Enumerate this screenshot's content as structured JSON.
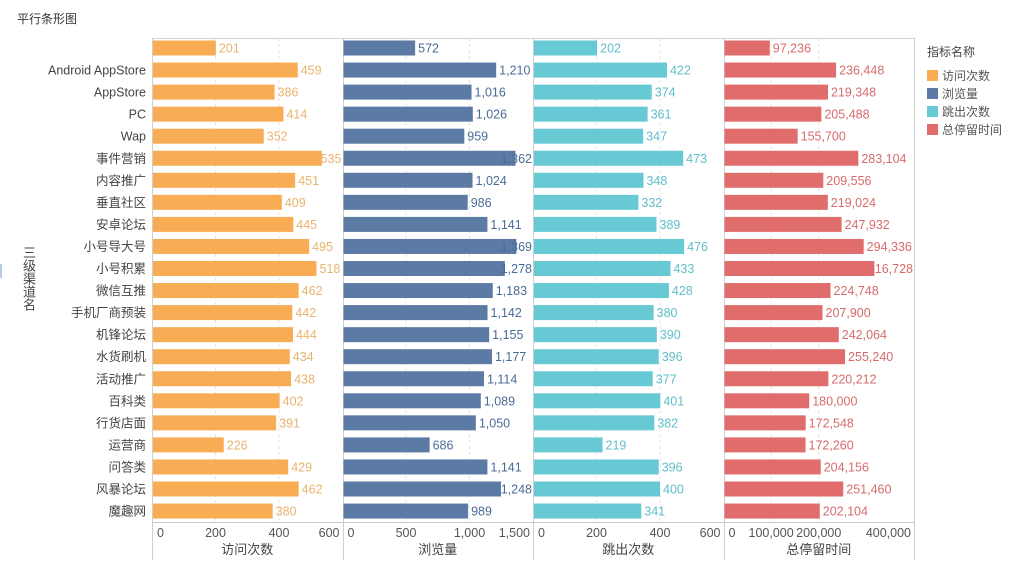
{
  "title": "平行条形图",
  "side_handle": "",
  "chart_data": {
    "type": "bar",
    "orientation": "horizontal",
    "layout": "parallel-panels",
    "title": "平行条形图",
    "ylabel": "三级渠道名",
    "categories": [
      "",
      "Android AppStore",
      "AppStore",
      "PC",
      "Wap",
      "事件营销",
      "内容推广",
      "垂直社区",
      "安卓论坛",
      "小号导大号",
      "小号积累",
      "微信互推",
      "手机厂商预装",
      "机锋论坛",
      "水货刷机",
      "活动推广",
      "百科类",
      "行货店面",
      "运营商",
      "问答类",
      "风暴论坛",
      "魔趣网"
    ],
    "series": [
      {
        "name": "访问次数",
        "xlabel": "访问次数",
        "color": "#f8ad55",
        "label_color": "#e9b36f",
        "xlim": [
          0,
          600
        ],
        "ticks": [
          0,
          200,
          400,
          600
        ],
        "tick_labels": [
          "0",
          "200",
          "400",
          "600"
        ],
        "values": [
          201,
          459,
          386,
          414,
          352,
          535,
          451,
          409,
          445,
          495,
          518,
          462,
          442,
          444,
          434,
          438,
          402,
          391,
          226,
          429,
          462,
          380
        ]
      },
      {
        "name": "浏览量",
        "xlabel": "浏览量",
        "color": "#5b7aa4",
        "label_color": "#4b6b97",
        "xlim": [
          0,
          1500
        ],
        "ticks": [
          0,
          500,
          1000,
          1500
        ],
        "tick_labels": [
          "0",
          "500",
          "1,000",
          "1,500"
        ],
        "values": [
          572,
          1210,
          1016,
          1026,
          959,
          1362,
          1024,
          986,
          1141,
          1369,
          1278,
          1183,
          1142,
          1155,
          1177,
          1114,
          1089,
          1050,
          686,
          1141,
          1248,
          989
        ]
      },
      {
        "name": "跳出次数",
        "xlabel": "跳出次数",
        "color": "#67c9d4",
        "label_color": "#5fbecb",
        "xlim": [
          0,
          600
        ],
        "ticks": [
          0,
          200,
          400,
          600
        ],
        "tick_labels": [
          "0",
          "200",
          "400",
          "600"
        ],
        "values": [
          202,
          422,
          374,
          361,
          347,
          473,
          348,
          332,
          389,
          476,
          433,
          428,
          380,
          390,
          396,
          377,
          401,
          382,
          219,
          396,
          400,
          341
        ]
      },
      {
        "name": "总停留时间",
        "xlabel": "总停留时间",
        "color": "#e06c6c",
        "label_color": "#d76b6b",
        "xlim": [
          0,
          400000
        ],
        "ticks": [
          0,
          100000,
          200000,
          400000
        ],
        "tick_labels": [
          "0",
          "100,000",
          "200,000",
          "400,000"
        ],
        "values": [
          97236,
          236448,
          219348,
          205488,
          155700,
          283104,
          209556,
          219024,
          247932,
          294336,
          316728,
          224748,
          207900,
          242064,
          255240,
          220212,
          180000,
          172548,
          172260,
          204156,
          251460,
          202104
        ]
      }
    ],
    "grid": true,
    "legend": {
      "title": "指标名称",
      "position": "top-right",
      "items": [
        {
          "label": "访问次数",
          "color": "#f8ad55"
        },
        {
          "label": "浏览量",
          "color": "#5b7aa4"
        },
        {
          "label": "跳出次数",
          "color": "#67c9d4"
        },
        {
          "label": "总停留时间",
          "color": "#e06c6c"
        }
      ]
    }
  }
}
